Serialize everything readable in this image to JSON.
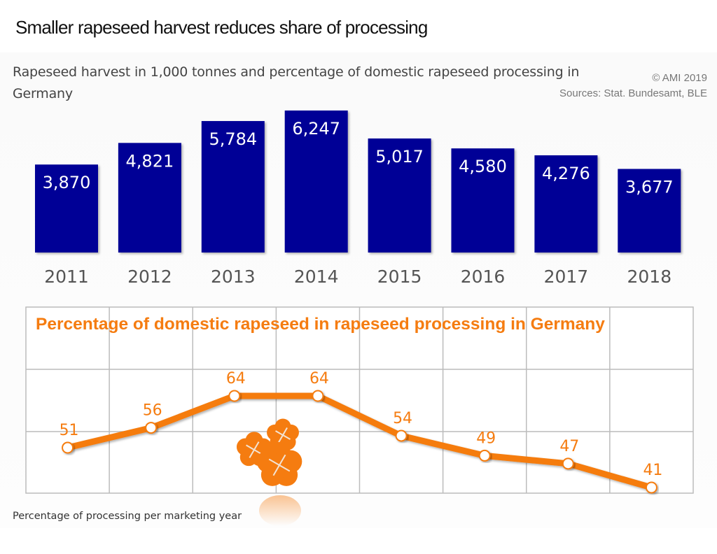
{
  "header": {
    "title": "Smaller rapeseed harvest reduces share of processing",
    "subtitle": "Rapeseed harvest in 1,000 tonnes and percentage of domestic rapeseed processing in Germany",
    "copyright": "© AMI 2019",
    "sources": "Sources: Stat. Bundesamt, BLE"
  },
  "footnote": "Percentage of processing per marketing year",
  "colors": {
    "bar": "#000096",
    "line": "#f57c10",
    "grid": "#bcbcbc",
    "axis_text": "#555555"
  },
  "chart_data": [
    {
      "type": "bar",
      "title": "Rapeseed harvest in 1,000 tonnes",
      "categories": [
        "2011",
        "2012",
        "2013",
        "2014",
        "2015",
        "2016",
        "2017",
        "2018"
      ],
      "values": [
        3870,
        4821,
        5784,
        6247,
        5017,
        4580,
        4276,
        3677
      ],
      "labels": [
        "3,870",
        "4,821",
        "5,784",
        "6,247",
        "5,017",
        "4,580",
        "4,276",
        "3,677"
      ],
      "xlabel": "",
      "ylabel": "1,000 tonnes",
      "grid": false
    },
    {
      "type": "line",
      "title": "Percentage of domestic rapeseed in rapeseed processing in Germany",
      "categories": [
        "2011",
        "2012",
        "2013",
        "2014",
        "2015",
        "2016",
        "2017",
        "2018"
      ],
      "values": [
        51,
        56,
        64,
        64,
        54,
        49,
        47,
        41
      ],
      "labels": [
        "51",
        "56",
        "64",
        "64",
        "54",
        "49",
        "47",
        "41"
      ],
      "xlabel": "",
      "ylabel": "Percentage of processing per marketing year",
      "ylim": [
        40,
        70
      ],
      "grid": true
    }
  ]
}
